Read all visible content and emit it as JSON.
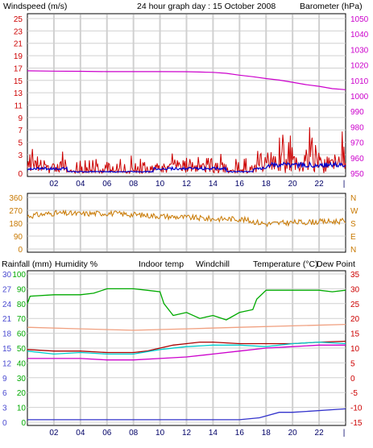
{
  "header": {
    "left_label": "Windspeed (m/s)",
    "title": "24 hour graph day : 15 October 2008",
    "right_label": "Barometer (hPa)"
  },
  "colors": {
    "windspeed": "#cc0000",
    "wind_avg": "#0000cc",
    "barometer": "#cc00cc",
    "direction": "#c87800",
    "humidity": "#00aa00",
    "indoor": "#f0a080",
    "windchill": "#00cccc",
    "temperature": "#aa0000",
    "dewpoint": "#cc00cc",
    "rainfall": "#3333cc",
    "tick_blue": "#4a4ad0",
    "tick_green": "#00aa00",
    "tick_red": "#cc0000",
    "tick_magenta": "#cc00cc",
    "tick_orange": "#c87800",
    "grid": "#d0d0d0"
  },
  "chart_data": [
    {
      "type": "line",
      "name": "wind-barometer",
      "left_axis": {
        "label": "Windspeed (m/s)",
        "ylim": [
          0,
          25
        ],
        "ticks": [
          "25",
          "23",
          "21",
          "19",
          "17",
          "15",
          "13",
          "11",
          "9",
          "7",
          "5",
          "3",
          "0"
        ]
      },
      "right_axis": {
        "label": "Barometer (hPa)",
        "ylim": [
          950,
          1050
        ],
        "ticks": [
          "1050",
          "1040",
          "1030",
          "1020",
          "1010",
          "1000",
          "990",
          "980",
          "970",
          "960",
          "950"
        ]
      },
      "x_ticks": [
        "02",
        "04",
        "06",
        "08",
        "10",
        "12",
        "14",
        "16",
        "18",
        "20",
        "22"
      ],
      "xlim": [
        0,
        24
      ],
      "grid": true,
      "series": [
        {
          "name": "Barometer (hPa)",
          "axis": "right",
          "x": [
            0,
            2,
            4,
            6,
            8,
            10,
            12,
            13,
            14,
            15,
            16,
            17,
            18,
            19,
            20,
            21,
            22,
            23,
            24
          ],
          "values": [
            1016.2,
            1016.0,
            1015.9,
            1015.7,
            1015.7,
            1015.7,
            1015.6,
            1015.4,
            1015.2,
            1014.6,
            1013.4,
            1012.4,
            1011.2,
            1010.2,
            1008.8,
            1007.3,
            1006.2,
            1004.7,
            1004.0
          ]
        }
      ]
    },
    {
      "type": "line",
      "name": "wind-direction",
      "left_axis": {
        "ylim": [
          0,
          360
        ],
        "ticks": [
          "360",
          "270",
          "180",
          "90",
          "0"
        ]
      },
      "right_axis": {
        "ticks": [
          "N",
          "W",
          "S",
          "E",
          "N"
        ]
      },
      "x_ticks": [],
      "xlim": [
        0,
        24
      ],
      "grid": true,
      "series": [
        {
          "name": "Wind direction",
          "x": [
            0,
            2,
            4,
            6,
            8,
            10,
            12,
            14,
            16,
            18,
            20,
            22,
            24
          ],
          "values": [
            230,
            250,
            245,
            250,
            240,
            230,
            220,
            210,
            210,
            175,
            185,
            190,
            195
          ]
        }
      ]
    },
    {
      "type": "line",
      "name": "temperature-humidity",
      "legend": [
        "Rainfall (mm)",
        "Humidity %",
        "Indoor temp",
        "Windchill",
        "Temperature (°C)",
        "Dew Point"
      ],
      "rain_ticks": [
        "30",
        "27",
        "24",
        "21",
        "18",
        "15",
        "12",
        "9",
        "6",
        "3",
        "0"
      ],
      "humidity_ticks": [
        "100",
        "90",
        "80",
        "70",
        "60",
        "50",
        "40",
        "30",
        "20",
        "10",
        "0"
      ],
      "temp_ticks": [
        "35",
        "30",
        "25",
        "20",
        "15",
        "10",
        "5",
        "0",
        "-5",
        "-10",
        "-15"
      ],
      "temp_ylim": [
        -15,
        35
      ],
      "x_ticks": [
        "02",
        "04",
        "06",
        "08",
        "10",
        "12",
        "14",
        "16",
        "18",
        "20",
        "22"
      ],
      "xlim": [
        0,
        24
      ],
      "grid": true,
      "series": [
        {
          "name": "Humidity %",
          "x": [
            0,
            0.2,
            2,
            4,
            5,
            6,
            8,
            9,
            10,
            10.3,
            11,
            12,
            13,
            14,
            15,
            16,
            17,
            17.3,
            18,
            20,
            22,
            23,
            24
          ],
          "values": [
            80,
            85,
            86,
            86,
            87,
            90,
            90,
            89,
            88,
            80,
            72,
            74,
            70,
            72,
            69,
            74,
            76,
            83,
            89,
            89,
            89,
            88,
            89
          ]
        },
        {
          "name": "Indoor temp",
          "x": [
            0,
            4,
            8,
            12,
            16,
            20,
            24
          ],
          "values": [
            17,
            16.5,
            16,
            16.5,
            17,
            17.5,
            18
          ]
        },
        {
          "name": "Temperature (°C)",
          "x": [
            0,
            2,
            4,
            6,
            8,
            9,
            10,
            11,
            12,
            13,
            14,
            16,
            18,
            20,
            22,
            24
          ],
          "values": [
            9.5,
            9,
            9,
            8.5,
            8.5,
            9,
            10,
            11,
            11.5,
            12,
            12,
            11.5,
            11.5,
            11.5,
            12,
            12.3
          ]
        },
        {
          "name": "Dew Point",
          "x": [
            0,
            2,
            4,
            6,
            8,
            10,
            12,
            14,
            16,
            18,
            20,
            22,
            24
          ],
          "values": [
            6.5,
            6.5,
            6.5,
            6,
            6,
            6.5,
            7,
            8,
            9,
            10,
            10.5,
            11,
            11
          ]
        },
        {
          "name": "Windchill",
          "x": [
            0,
            2,
            4,
            6,
            8,
            10,
            12,
            14,
            16,
            18,
            20,
            22,
            24
          ],
          "values": [
            9,
            8,
            8.5,
            8,
            8,
            9.5,
            10.5,
            11,
            11,
            10.5,
            11.5,
            12,
            11.5
          ]
        },
        {
          "name": "Rainfall (mm)",
          "x": [
            0,
            8,
            16,
            17.5,
            19,
            20,
            24
          ],
          "values": [
            0.5,
            0.5,
            0.5,
            0.9,
            2,
            2,
            2.7
          ]
        }
      ]
    }
  ]
}
